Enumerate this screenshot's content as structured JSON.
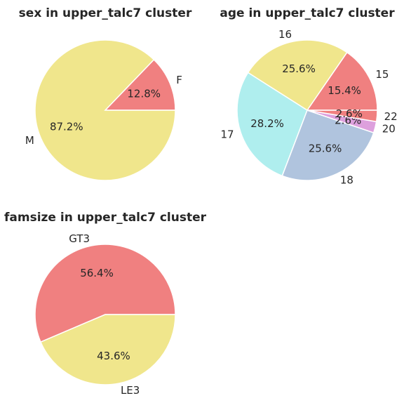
{
  "chart_data": [
    {
      "type": "pie",
      "title": "sex in upper_talc7 cluster",
      "labels": [
        "F",
        "M"
      ],
      "values": [
        12.8,
        87.2
      ],
      "pct_labels": [
        "12.8%",
        "87.2%"
      ],
      "colors": [
        "#f08080",
        "#f0e68c"
      ]
    },
    {
      "type": "pie",
      "title": "age in upper_talc7 cluster",
      "labels": [
        "15",
        "16",
        "17",
        "18",
        "20",
        "22"
      ],
      "values": [
        15.4,
        25.6,
        28.2,
        25.6,
        2.6,
        2.6
      ],
      "pct_labels": [
        "15.4%",
        "25.6%",
        "28.2%",
        "25.6%",
        "2.6%",
        "2.6%"
      ],
      "colors": [
        "#f08080",
        "#f0e68c",
        "#afeeee",
        "#b0c4de",
        "#dda0dd",
        "#f08080"
      ]
    },
    {
      "type": "pie",
      "title": "famsize in upper_talc7 cluster",
      "labels": [
        "GT3",
        "LE3"
      ],
      "values": [
        56.4,
        43.6
      ],
      "pct_labels": [
        "56.4%",
        "43.6%"
      ],
      "colors": [
        "#f08080",
        "#f0e68c"
      ]
    }
  ]
}
